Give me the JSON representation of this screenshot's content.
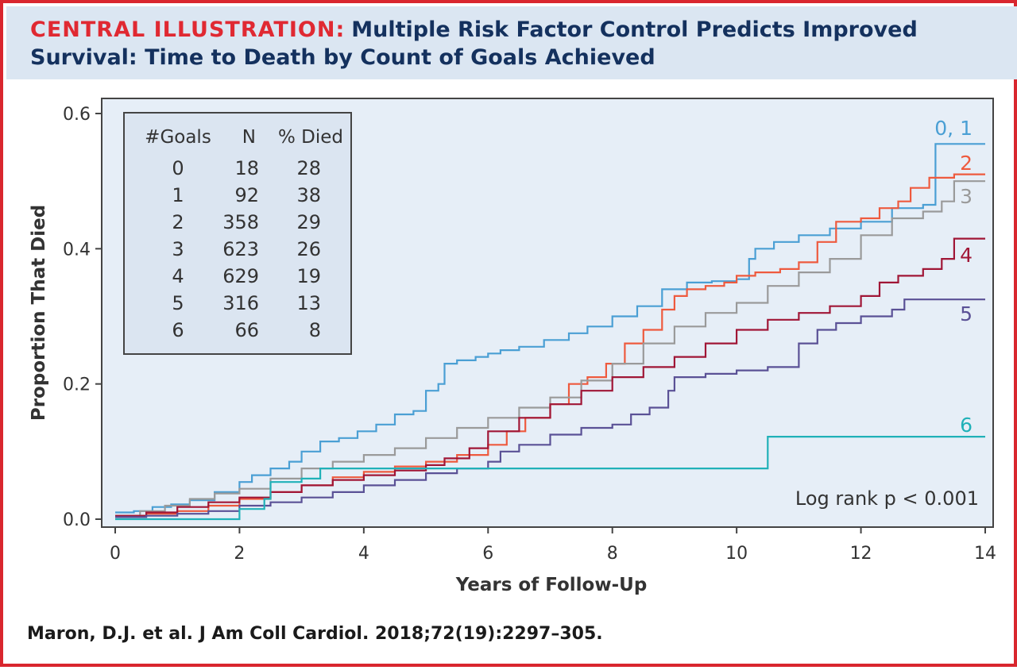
{
  "header": {
    "label": "CENTRAL ILLUSTRATION:",
    "title": "Multiple Risk Factor Control Predicts Improved Survival: Time to Death by Count of Goals Achieved"
  },
  "citation": "Maron, D.J. et al. J Am Coll Cardiol. 2018;72(19):2297–305.",
  "colors": {
    "frame": "#d9262e",
    "header_bg": "#dbe6f2",
    "plot_bg": "#e6eef7",
    "title_label": "#e02932",
    "title_text": "#14315e"
  },
  "chart_data": {
    "type": "line",
    "step": true,
    "xlabel": "Years of Follow-Up",
    "ylabel": "Proportion That Died",
    "xlim": [
      0,
      14
    ],
    "ylim": [
      0,
      0.6
    ],
    "xticks": [
      "0",
      "2",
      "4",
      "6",
      "8",
      "10",
      "12",
      "14"
    ],
    "yticks": [
      "0.0",
      "0.2",
      "0.4",
      "0.6"
    ],
    "xtick_values": [
      0,
      2,
      4,
      6,
      8,
      10,
      12,
      14
    ],
    "ytick_values": [
      0,
      0.2,
      0.4,
      0.6
    ],
    "grid": false,
    "annotation": "Log rank p < 0.001",
    "table": {
      "headers": [
        "#Goals",
        "N",
        "% Died"
      ],
      "rows": [
        [
          "0",
          "18",
          "28"
        ],
        [
          "1",
          "92",
          "38"
        ],
        [
          "2",
          "358",
          "29"
        ],
        [
          "3",
          "623",
          "26"
        ],
        [
          "4",
          "629",
          "19"
        ],
        [
          "5",
          "316",
          "13"
        ],
        [
          "6",
          "66",
          "8"
        ]
      ]
    },
    "series": [
      {
        "name": "0, 1",
        "color": "#4a9fd4",
        "x": [
          0,
          0.3,
          0.6,
          0.9,
          1.2,
          1.6,
          2.0,
          2.2,
          2.5,
          2.8,
          3.0,
          3.3,
          3.6,
          3.9,
          4.2,
          4.5,
          4.8,
          5.0,
          5.2,
          5.3,
          5.5,
          5.8,
          6.0,
          6.2,
          6.5,
          6.9,
          7.3,
          7.6,
          8.0,
          8.4,
          8.8,
          9.2,
          9.6,
          10.0,
          10.2,
          10.3,
          10.6,
          11.0,
          11.5,
          12.0,
          12.5,
          13.0,
          13.2,
          13.5,
          14.0
        ],
        "y": [
          0.01,
          0.012,
          0.018,
          0.022,
          0.028,
          0.04,
          0.055,
          0.065,
          0.075,
          0.085,
          0.1,
          0.115,
          0.12,
          0.13,
          0.14,
          0.155,
          0.16,
          0.19,
          0.2,
          0.23,
          0.235,
          0.24,
          0.245,
          0.25,
          0.255,
          0.265,
          0.275,
          0.285,
          0.3,
          0.315,
          0.34,
          0.35,
          0.352,
          0.355,
          0.385,
          0.4,
          0.41,
          0.42,
          0.43,
          0.44,
          0.46,
          0.465,
          0.555,
          0.555,
          0.555
        ]
      },
      {
        "name": "2",
        "color": "#ee5a3e",
        "x": [
          0,
          0.5,
          1.0,
          1.5,
          2.0,
          2.5,
          3.0,
          3.5,
          4.0,
          4.5,
          5.0,
          5.5,
          6.0,
          6.3,
          6.6,
          7.0,
          7.3,
          7.6,
          7.9,
          8.2,
          8.5,
          8.8,
          9.0,
          9.2,
          9.5,
          9.8,
          10.0,
          10.3,
          10.7,
          11.0,
          11.3,
          11.6,
          12.0,
          12.3,
          12.6,
          12.8,
          13.1,
          13.5,
          14.0
        ],
        "y": [
          0.005,
          0.008,
          0.012,
          0.02,
          0.03,
          0.04,
          0.05,
          0.062,
          0.07,
          0.078,
          0.085,
          0.095,
          0.11,
          0.13,
          0.15,
          0.17,
          0.2,
          0.21,
          0.23,
          0.26,
          0.28,
          0.31,
          0.33,
          0.34,
          0.345,
          0.35,
          0.36,
          0.365,
          0.37,
          0.38,
          0.41,
          0.44,
          0.445,
          0.46,
          0.47,
          0.49,
          0.505,
          0.51,
          0.51
        ]
      },
      {
        "name": "3",
        "color": "#9a9a9a",
        "x": [
          0,
          0.4,
          0.8,
          1.2,
          1.6,
          2.0,
          2.5,
          3.0,
          3.5,
          4.0,
          4.5,
          5.0,
          5.5,
          6.0,
          6.5,
          7.0,
          7.5,
          8.0,
          8.5,
          9.0,
          9.5,
          10.0,
          10.5,
          11.0,
          11.5,
          12.0,
          12.5,
          13.0,
          13.3,
          13.5,
          14.0
        ],
        "y": [
          0.005,
          0.012,
          0.02,
          0.03,
          0.038,
          0.045,
          0.06,
          0.075,
          0.085,
          0.095,
          0.105,
          0.12,
          0.135,
          0.15,
          0.165,
          0.18,
          0.205,
          0.23,
          0.26,
          0.285,
          0.305,
          0.32,
          0.345,
          0.365,
          0.385,
          0.42,
          0.445,
          0.455,
          0.47,
          0.5,
          0.5
        ]
      },
      {
        "name": "4",
        "color": "#a01636",
        "x": [
          0,
          0.5,
          1.0,
          1.5,
          2.0,
          2.5,
          3.0,
          3.5,
          4.0,
          4.5,
          5.0,
          5.3,
          5.7,
          6.0,
          6.5,
          7.0,
          7.5,
          8.0,
          8.5,
          9.0,
          9.5,
          10.0,
          10.5,
          11.0,
          11.5,
          12.0,
          12.3,
          12.6,
          13.0,
          13.3,
          13.5,
          14.0
        ],
        "y": [
          0.005,
          0.01,
          0.018,
          0.025,
          0.032,
          0.04,
          0.05,
          0.058,
          0.065,
          0.072,
          0.08,
          0.09,
          0.105,
          0.13,
          0.15,
          0.17,
          0.19,
          0.21,
          0.225,
          0.24,
          0.26,
          0.28,
          0.295,
          0.305,
          0.315,
          0.33,
          0.35,
          0.36,
          0.37,
          0.385,
          0.415,
          0.415
        ]
      },
      {
        "name": "5",
        "color": "#5a5196",
        "x": [
          0,
          0.5,
          1.0,
          1.5,
          2.0,
          2.5,
          3.0,
          3.5,
          4.0,
          4.5,
          5.0,
          5.5,
          6.0,
          6.2,
          6.5,
          7.0,
          7.5,
          8.0,
          8.3,
          8.6,
          8.9,
          9.0,
          9.5,
          10.0,
          10.5,
          11.0,
          11.3,
          11.6,
          12.0,
          12.5,
          12.7,
          13.0,
          14.0
        ],
        "y": [
          0.003,
          0.005,
          0.008,
          0.012,
          0.02,
          0.025,
          0.032,
          0.04,
          0.05,
          0.058,
          0.068,
          0.075,
          0.085,
          0.1,
          0.11,
          0.125,
          0.135,
          0.14,
          0.155,
          0.165,
          0.19,
          0.21,
          0.215,
          0.22,
          0.225,
          0.26,
          0.28,
          0.29,
          0.3,
          0.31,
          0.325,
          0.325,
          0.325
        ]
      },
      {
        "name": "6",
        "color": "#20b1b8",
        "x": [
          0,
          2.0,
          2.4,
          2.5,
          3.0,
          3.3,
          4.0,
          5.0,
          6.0,
          7.0,
          8.0,
          9.0,
          10.0,
          10.5,
          11.0,
          12.0,
          13.0,
          14.0
        ],
        "y": [
          0.0,
          0.015,
          0.03,
          0.055,
          0.06,
          0.075,
          0.075,
          0.075,
          0.075,
          0.075,
          0.075,
          0.075,
          0.075,
          0.122,
          0.122,
          0.122,
          0.122,
          0.122
        ]
      }
    ]
  }
}
